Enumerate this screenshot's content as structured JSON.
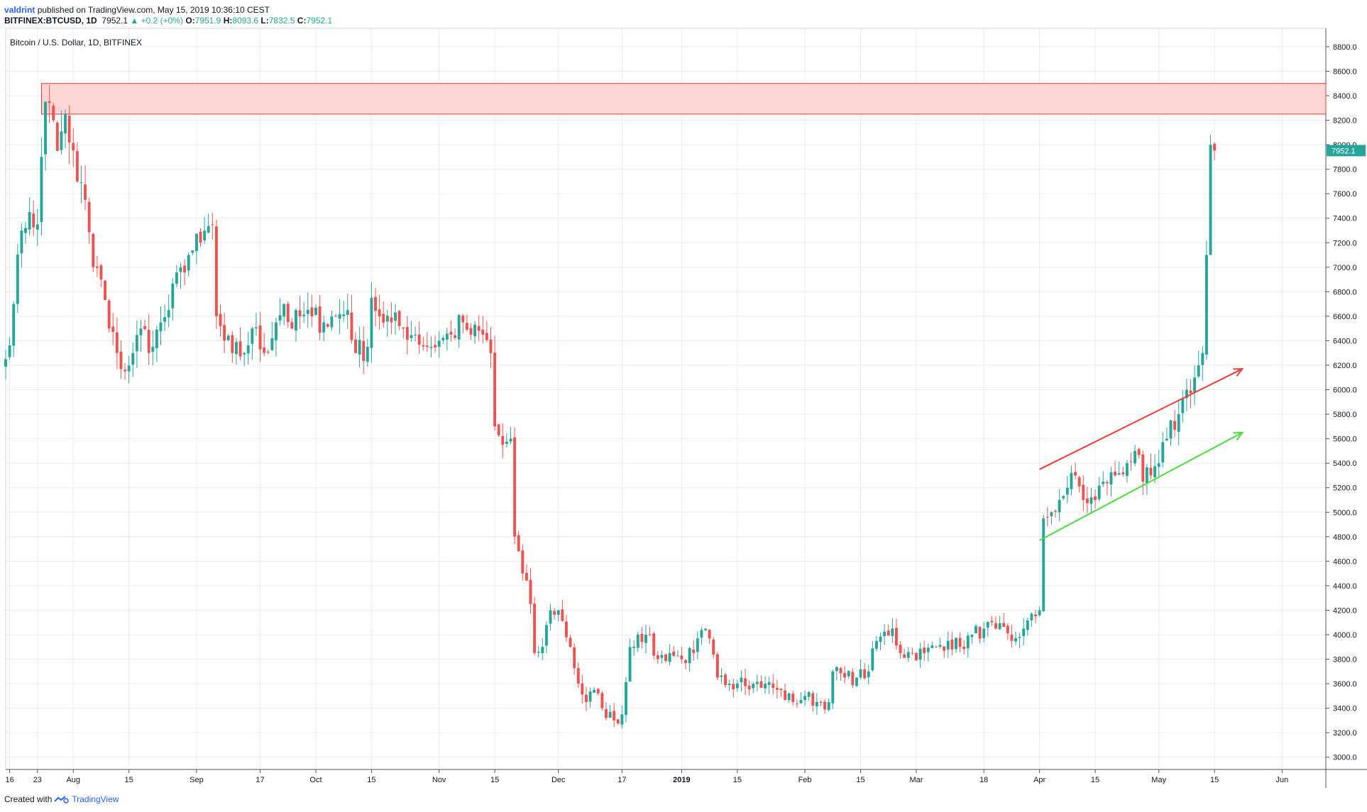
{
  "header": {
    "user": "valdrint",
    "published": "published on TradingView.com, May 15, 2019 10:36:10 CEST",
    "symbol": "BITFINEX:BTCUSD, 1D",
    "last": "7952.1",
    "change": "▲ +0.2 (+0%)",
    "o_label": "O:",
    "o": "7951.9",
    "h_label": "H:",
    "h": "8093.6",
    "l_label": "L:",
    "l": "7832.5",
    "c_label": "C:",
    "c": "7952.1"
  },
  "footer": {
    "created_with": "Created with",
    "brand": "TradingView"
  },
  "colors": {
    "up": "#26a69a",
    "down": "#ef5350",
    "grid": "#e8edf3",
    "zone_fill": "#fdd5d5",
    "zone_stroke": "#e53935",
    "price_tag": "#26a69a"
  },
  "chart_data": {
    "type": "candlestick",
    "title": "Bitcoin / U.S. Dollar, 1D, BITFINEX",
    "ylim": [
      2900,
      8950
    ],
    "y_ticks": [
      3000,
      3200,
      3400,
      3600,
      3800,
      4000,
      4200,
      4400,
      4600,
      4800,
      5000,
      5200,
      5400,
      5600,
      5800,
      6000,
      6200,
      6400,
      6600,
      6800,
      7000,
      7200,
      7400,
      7600,
      7800,
      8000,
      8200,
      8400,
      8600,
      8800
    ],
    "y_tick_labels": [
      "3000.0",
      "3200.0",
      "3400.0",
      "3600.0",
      "3800.0",
      "4000.0",
      "4200.0",
      "4400.0",
      "4600.0",
      "4800.0",
      "5000.0",
      "5200.0",
      "5400.0",
      "5600.0",
      "5800.0",
      "6000.0",
      "6200.0",
      "6400.0",
      "6600.0",
      "6800.0",
      "7000.0",
      "7200.0",
      "7400.0",
      "7600.0",
      "7800.0",
      "8000.0",
      "8200.0",
      "8400.0",
      "8600.0",
      "8800.0"
    ],
    "x_start": "2018-07-15",
    "x_end": "2019-06-12",
    "x_ticks": [
      {
        "date": "2018-07-16",
        "label": "16"
      },
      {
        "date": "2018-07-23",
        "label": "23"
      },
      {
        "date": "2018-08-01",
        "label": "Aug"
      },
      {
        "date": "2018-08-15",
        "label": "15"
      },
      {
        "date": "2018-09-01",
        "label": "Sep"
      },
      {
        "date": "2018-09-17",
        "label": "17"
      },
      {
        "date": "2018-10-01",
        "label": "Oct"
      },
      {
        "date": "2018-10-15",
        "label": "15"
      },
      {
        "date": "2018-11-01",
        "label": "Nov"
      },
      {
        "date": "2018-11-15",
        "label": "15"
      },
      {
        "date": "2018-12-01",
        "label": "Dec"
      },
      {
        "date": "2018-12-17",
        "label": "17"
      },
      {
        "date": "2019-01-01",
        "label": "2019"
      },
      {
        "date": "2019-01-15",
        "label": "15"
      },
      {
        "date": "2019-02-01",
        "label": "Feb"
      },
      {
        "date": "2019-02-15",
        "label": "15"
      },
      {
        "date": "2019-03-01",
        "label": "Mar"
      },
      {
        "date": "2019-03-18",
        "label": "18"
      },
      {
        "date": "2019-04-01",
        "label": "Apr"
      },
      {
        "date": "2019-04-15",
        "label": "15"
      },
      {
        "date": "2019-05-01",
        "label": "May"
      },
      {
        "date": "2019-05-15",
        "label": "15"
      },
      {
        "date": "2019-06-01",
        "label": "Jun"
      }
    ],
    "last_price": 7952.1,
    "last_price_label": "7952.1",
    "grid": true,
    "resistance_zone": {
      "from": "2018-07-24",
      "to": "2019-06-12",
      "low": 8250,
      "high": 8500
    },
    "trend_lines": [
      {
        "color": "#ef3b36",
        "start": {
          "date": "2019-04-01",
          "price": 5350
        },
        "end": {
          "date": "2019-05-22",
          "price": 6170
        }
      },
      {
        "color": "#4cd93b",
        "start": {
          "date": "2019-04-01",
          "price": 4770
        },
        "end": {
          "date": "2019-05-22",
          "price": 5650
        }
      }
    ],
    "anchors": [
      [
        "2018-07-15",
        6250
      ],
      [
        "2018-07-17",
        6700
      ],
      [
        "2018-07-19",
        7300
      ],
      [
        "2018-07-21",
        7450
      ],
      [
        "2018-07-23",
        7350
      ],
      [
        "2018-07-24",
        7900
      ],
      [
        "2018-07-25",
        8350
      ],
      [
        "2018-07-27",
        8200
      ],
      [
        "2018-07-28",
        7950
      ],
      [
        "2018-07-30",
        8250
      ],
      [
        "2018-08-02",
        7700
      ],
      [
        "2018-08-04",
        7550
      ],
      [
        "2018-08-06",
        7000
      ],
      [
        "2018-08-08",
        6900
      ],
      [
        "2018-08-10",
        6500
      ],
      [
        "2018-08-12",
        6300
      ],
      [
        "2018-08-14",
        6150
      ],
      [
        "2018-08-16",
        6300
      ],
      [
        "2018-08-18",
        6500
      ],
      [
        "2018-08-21",
        6350
      ],
      [
        "2018-08-23",
        6550
      ],
      [
        "2018-08-25",
        6650
      ],
      [
        "2018-08-28",
        7000
      ],
      [
        "2018-08-30",
        7100
      ],
      [
        "2018-09-02",
        7200
      ],
      [
        "2018-09-05",
        7350
      ],
      [
        "2018-09-06",
        6600
      ],
      [
        "2018-09-08",
        6400
      ],
      [
        "2018-09-10",
        6300
      ],
      [
        "2018-09-13",
        6300
      ],
      [
        "2018-09-15",
        6500
      ],
      [
        "2018-09-18",
        6300
      ],
      [
        "2018-09-21",
        6550
      ],
      [
        "2018-09-23",
        6700
      ],
      [
        "2018-09-25",
        6500
      ],
      [
        "2018-09-27",
        6600
      ],
      [
        "2018-09-30",
        6600
      ],
      [
        "2018-10-03",
        6550
      ],
      [
        "2018-10-06",
        6600
      ],
      [
        "2018-10-09",
        6650
      ],
      [
        "2018-10-11",
        6300
      ],
      [
        "2018-10-14",
        6350
      ],
      [
        "2018-10-15",
        6750
      ],
      [
        "2018-10-17",
        6600
      ],
      [
        "2018-10-20",
        6550
      ],
      [
        "2018-10-23",
        6500
      ],
      [
        "2018-10-26",
        6450
      ],
      [
        "2018-10-29",
        6350
      ],
      [
        "2018-11-01",
        6400
      ],
      [
        "2018-11-04",
        6450
      ],
      [
        "2018-11-07",
        6550
      ],
      [
        "2018-11-09",
        6450
      ],
      [
        "2018-11-12",
        6450
      ],
      [
        "2018-11-14",
        6300
      ],
      [
        "2018-11-15",
        5700
      ],
      [
        "2018-11-17",
        5550
      ],
      [
        "2018-11-19",
        5600
      ],
      [
        "2018-11-20",
        4800
      ],
      [
        "2018-11-22",
        4500
      ],
      [
        "2018-11-24",
        4250
      ],
      [
        "2018-11-25",
        3850
      ],
      [
        "2018-11-27",
        3900
      ],
      [
        "2018-11-29",
        4200
      ],
      [
        "2018-12-01",
        4200
      ],
      [
        "2018-12-04",
        3900
      ],
      [
        "2018-12-06",
        3600
      ],
      [
        "2018-12-08",
        3450
      ],
      [
        "2018-12-10",
        3550
      ],
      [
        "2018-12-12",
        3400
      ],
      [
        "2018-12-15",
        3300
      ],
      [
        "2018-12-17",
        3350
      ],
      [
        "2018-12-19",
        3900
      ],
      [
        "2018-12-21",
        4000
      ],
      [
        "2018-12-23",
        4000
      ],
      [
        "2018-12-26",
        3800
      ],
      [
        "2018-12-29",
        3850
      ],
      [
        "2019-01-01",
        3800
      ],
      [
        "2019-01-04",
        3850
      ],
      [
        "2019-01-07",
        4050
      ],
      [
        "2019-01-10",
        3650
      ],
      [
        "2019-01-13",
        3600
      ],
      [
        "2019-01-16",
        3650
      ],
      [
        "2019-01-19",
        3600
      ],
      [
        "2019-01-22",
        3600
      ],
      [
        "2019-01-25",
        3550
      ],
      [
        "2019-01-29",
        3450
      ],
      [
        "2019-02-01",
        3500
      ],
      [
        "2019-02-04",
        3450
      ],
      [
        "2019-02-07",
        3450
      ],
      [
        "2019-02-08",
        3700
      ],
      [
        "2019-02-11",
        3650
      ],
      [
        "2019-02-14",
        3650
      ],
      [
        "2019-02-17",
        3700
      ],
      [
        "2019-02-19",
        3950
      ],
      [
        "2019-02-23",
        4050
      ],
      [
        "2019-02-25",
        3850
      ],
      [
        "2019-02-28",
        3850
      ],
      [
        "2019-03-03",
        3850
      ],
      [
        "2019-03-06",
        3900
      ],
      [
        "2019-03-09",
        3950
      ],
      [
        "2019-03-12",
        3900
      ],
      [
        "2019-03-15",
        4000
      ],
      [
        "2019-03-18",
        4050
      ],
      [
        "2019-03-21",
        4050
      ],
      [
        "2019-03-25",
        3950
      ],
      [
        "2019-03-28",
        4050
      ],
      [
        "2019-03-31",
        4150
      ],
      [
        "2019-04-01",
        4200
      ],
      [
        "2019-04-02",
        4950
      ],
      [
        "2019-04-04",
        5000
      ],
      [
        "2019-04-06",
        5100
      ],
      [
        "2019-04-08",
        5200
      ],
      [
        "2019-04-10",
        5300
      ],
      [
        "2019-04-12",
        5100
      ],
      [
        "2019-04-15",
        5100
      ],
      [
        "2019-04-17",
        5250
      ],
      [
        "2019-04-20",
        5300
      ],
      [
        "2019-04-23",
        5400
      ],
      [
        "2019-04-25",
        5500
      ],
      [
        "2019-04-27",
        5250
      ],
      [
        "2019-04-29",
        5300
      ],
      [
        "2019-05-01",
        5400
      ],
      [
        "2019-05-03",
        5600
      ],
      [
        "2019-05-06",
        5800
      ],
      [
        "2019-05-08",
        6000
      ],
      [
        "2019-05-10",
        6100
      ],
      [
        "2019-05-12",
        6300
      ],
      [
        "2019-05-13",
        7100
      ],
      [
        "2019-05-14",
        8000
      ],
      [
        "2019-05-15",
        7952
      ]
    ]
  }
}
